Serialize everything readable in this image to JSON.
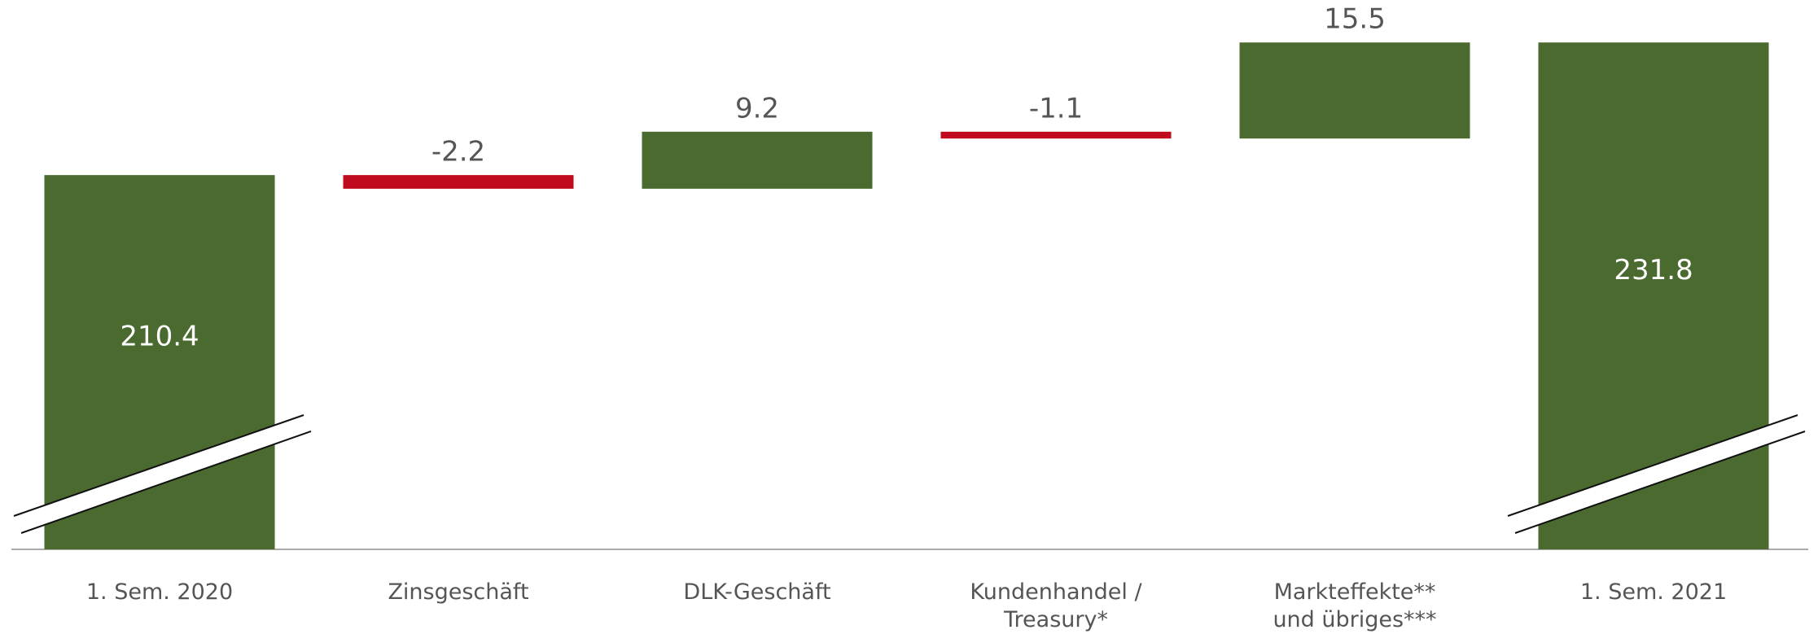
{
  "chart_data": {
    "type": "waterfall",
    "categories": [
      "1. Sem. 2020",
      "Zinsgeschäft",
      "DLK-Geschäft",
      "Kundenhandel /\nTreasury*",
      "Markteffekte**\nund übriges***",
      "1. Sem. 2021"
    ],
    "values": [
      210.4,
      -2.2,
      9.2,
      -1.1,
      15.5,
      231.8
    ],
    "colors": {
      "total": "#4a6a2f",
      "increase": "#4a6a2f",
      "decrease": "#c00a1e"
    },
    "ylim": [
      150,
      238
    ],
    "axis_break": true
  }
}
